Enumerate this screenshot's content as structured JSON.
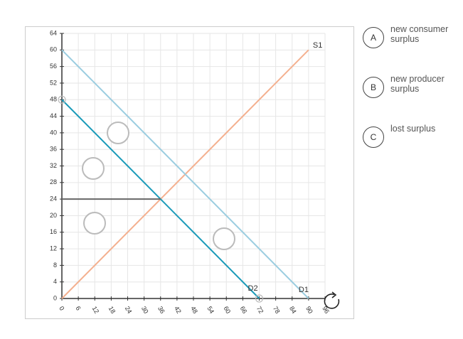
{
  "chart_data": {
    "type": "line",
    "xlim": [
      0,
      96
    ],
    "xticks": [
      0,
      6,
      12,
      18,
      24,
      30,
      36,
      42,
      48,
      54,
      60,
      66,
      72,
      78,
      84,
      90,
      96
    ],
    "ylim": [
      0,
      64
    ],
    "yticks": [
      0,
      4,
      8,
      12,
      16,
      20,
      24,
      28,
      32,
      36,
      40,
      44,
      48,
      52,
      56,
      60,
      64
    ],
    "grid": true,
    "series": [
      {
        "name": "S1",
        "color": "#f4b08f",
        "x": [
          0,
          90
        ],
        "values": [
          0,
          60
        ]
      },
      {
        "name": "D1",
        "color": "#9bcde0",
        "x": [
          0,
          90
        ],
        "values": [
          60,
          0
        ]
      },
      {
        "name": "D2",
        "color": "#1b9bb9",
        "x": [
          0,
          72
        ],
        "values": [
          48,
          0
        ]
      },
      {
        "color": "#666666",
        "x": [
          0,
          36
        ],
        "values": [
          24,
          24
        ]
      }
    ]
  },
  "options": [
    {
      "letter": "A",
      "label": "new consumer surplus"
    },
    {
      "letter": "B",
      "label": "new producer surplus"
    },
    {
      "letter": "C",
      "label": "lost surplus"
    }
  ]
}
